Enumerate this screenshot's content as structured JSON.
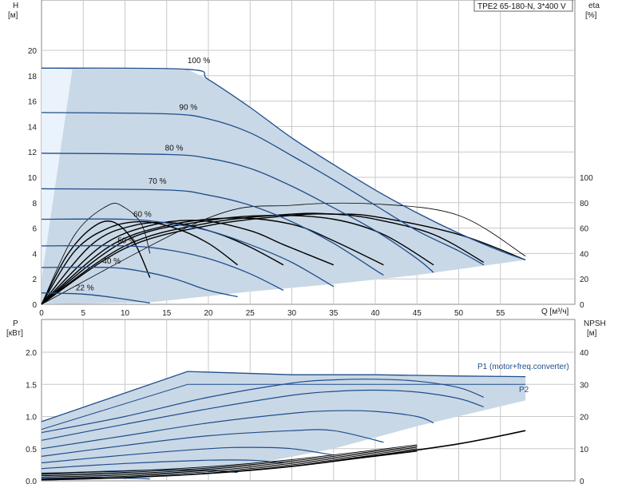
{
  "chart_data": [
    {
      "type": "line",
      "panel": "top",
      "title": "TPE2 65-180-N, 3*400 V",
      "ylabel_left": "H",
      "ylabel_left_unit": "[м]",
      "ylabel_right": "eta",
      "ylabel_right_unit": "[%]",
      "xlabel": "Q [м³/ч]",
      "xlim": [
        0,
        60
      ],
      "ylim": [
        0,
        23
      ],
      "xticks": [
        "0",
        "5",
        "10",
        "15",
        "20",
        "25",
        "30",
        "35",
        "40",
        "45",
        "50",
        "55"
      ],
      "yticks_left": [
        "0",
        "2",
        "4",
        "6",
        "8",
        "10",
        "12",
        "14",
        "16",
        "18",
        "20"
      ],
      "yticks_right": [
        "0",
        "20",
        "40",
        "60",
        "80",
        "100"
      ],
      "right_axis_range": [
        0,
        100
      ],
      "grid": true,
      "operating_area_color": "#c9d8e6",
      "curve_color": "#1f4e8c",
      "head_curves": [
        {
          "name": "100 %",
          "x": [
            0,
            17.5,
            20,
            25,
            30,
            35,
            40,
            45,
            50,
            55,
            58
          ],
          "y": [
            18.6,
            18.5,
            17.7,
            15.5,
            13.1,
            11.0,
            9.0,
            7.2,
            5.6,
            4.2,
            3.5
          ]
        },
        {
          "name": "90 %",
          "x": [
            0,
            15,
            20,
            25,
            30,
            35,
            40,
            45,
            50,
            53
          ],
          "y": [
            15.1,
            15.0,
            14.6,
            13.5,
            11.7,
            9.8,
            7.8,
            5.8,
            4.2,
            3.1
          ]
        },
        {
          "name": "80 %",
          "x": [
            0,
            15,
            20,
            25,
            30,
            35,
            40,
            45,
            47
          ],
          "y": [
            11.9,
            11.8,
            11.5,
            10.7,
            9.3,
            7.6,
            5.8,
            3.6,
            2.5
          ]
        },
        {
          "name": "70 %",
          "x": [
            0,
            15,
            20,
            25,
            30,
            35,
            40,
            41
          ],
          "y": [
            9.1,
            9.0,
            8.6,
            7.8,
            6.5,
            4.8,
            2.7,
            2.3
          ]
        },
        {
          "name": "60 %",
          "x": [
            0,
            10,
            15,
            20,
            25,
            30,
            35
          ],
          "y": [
            6.7,
            6.7,
            6.4,
            5.8,
            4.7,
            3.3,
            1.4
          ]
        },
        {
          "name": "50 %",
          "x": [
            0,
            10,
            15,
            20,
            25,
            29
          ],
          "y": [
            4.6,
            4.6,
            4.3,
            3.6,
            2.4,
            1.1
          ]
        },
        {
          "name": "40 %",
          "x": [
            0,
            8,
            12,
            16,
            20,
            23.5
          ],
          "y": [
            2.9,
            2.9,
            2.6,
            2.0,
            1.1,
            0.6
          ]
        },
        {
          "name": "22 %",
          "x": [
            0,
            5,
            9,
            13
          ],
          "y": [
            0.9,
            0.8,
            0.5,
            0.1
          ]
        }
      ],
      "efficiency_curves_pct": [
        {
          "name": "100 %",
          "x": [
            0,
            10,
            20,
            30,
            35,
            40,
            50,
            58
          ],
          "y": [
            0,
            44,
            62,
            70,
            71,
            69,
            55,
            35
          ]
        },
        {
          "name": "90 %",
          "x": [
            0,
            10,
            20,
            30,
            35,
            40,
            47,
            53
          ],
          "y": [
            0,
            46,
            64,
            71,
            71,
            67,
            55,
            33
          ]
        },
        {
          "name": "80 %",
          "x": [
            0,
            10,
            20,
            28,
            35,
            41,
            47
          ],
          "y": [
            0,
            50,
            66,
            70,
            67,
            55,
            31
          ]
        },
        {
          "name": "70 %",
          "x": [
            0,
            8,
            15,
            23,
            30,
            35,
            41
          ],
          "y": [
            0,
            45,
            62,
            68,
            63,
            50,
            31
          ]
        },
        {
          "name": "60 %",
          "x": [
            0,
            7,
            13,
            19,
            25,
            29,
            35
          ],
          "y": [
            0,
            45,
            62,
            66,
            58,
            47,
            31
          ]
        },
        {
          "name": "50 %",
          "x": [
            0,
            6,
            11,
            16,
            21,
            25,
            29
          ],
          "y": [
            0,
            47,
            62,
            64,
            56,
            45,
            31
          ]
        },
        {
          "name": "40 %",
          "x": [
            0,
            4,
            8,
            12,
            16,
            20,
            23.5
          ],
          "y": [
            0,
            42,
            60,
            65,
            60,
            48,
            31
          ]
        },
        {
          "name": "22 %",
          "x": [
            0,
            3,
            6,
            8.5,
            11,
            13
          ],
          "y": [
            0,
            38,
            60,
            65,
            50,
            21
          ]
        }
      ],
      "efficiency_reference_curves_pct": [
        {
          "x": [
            0,
            4,
            8,
            10,
            12,
            13
          ],
          "y": [
            0,
            55,
            78,
            76,
            63,
            40
          ]
        },
        {
          "x": [
            0,
            20,
            30,
            40,
            50,
            58
          ],
          "y": [
            0,
            68,
            78,
            79,
            70,
            38
          ]
        }
      ],
      "annotations": [
        "100 %",
        "90 %",
        "80 %",
        "70 %",
        "60 %",
        "50 %",
        "40 %",
        "22 %"
      ]
    },
    {
      "type": "line",
      "panel": "bottom",
      "ylabel_left": "P",
      "ylabel_left_unit": "[кВт]",
      "ylabel_right": "NPSH",
      "ylabel_right_unit": "[м]",
      "xlim": [
        0,
        60
      ],
      "ylim": [
        0,
        2.0
      ],
      "yticks_left": [
        "0.0",
        "0.5",
        "1.0",
        "1.5",
        "2.0"
      ],
      "yticks_right": [
        "0",
        "10",
        "20",
        "30",
        "40"
      ],
      "right_axis_range": [
        0,
        40
      ],
      "grid": true,
      "power_area_color": "#c9d8e6",
      "curve_color": "#1f4e8c",
      "legend_labels": [
        "P1 (motor+freq.converter)",
        "P2"
      ],
      "p1_100": {
        "x": [
          0,
          17.5,
          30,
          40,
          50,
          58
        ],
        "y": [
          0.92,
          1.7,
          1.65,
          1.65,
          1.63,
          1.62
        ]
      },
      "p2_100": {
        "x": [
          0,
          17.5,
          30,
          40,
          50,
          58
        ],
        "y": [
          0.8,
          1.5,
          1.5,
          1.5,
          1.5,
          1.5
        ]
      },
      "power_curves": [
        {
          "name": "100 %",
          "x": [
            0,
            10,
            20,
            30,
            35,
            40,
            45,
            50,
            53
          ],
          "y": [
            0.75,
            1.0,
            1.3,
            1.52,
            1.57,
            1.58,
            1.55,
            1.45,
            1.3
          ]
        },
        {
          "name": "90 %",
          "x": [
            0,
            10,
            20,
            30,
            35,
            40,
            45,
            50,
            53
          ],
          "y": [
            0.63,
            0.88,
            1.12,
            1.33,
            1.39,
            1.41,
            1.38,
            1.28,
            1.15
          ]
        },
        {
          "name": "80 %",
          "x": [
            0,
            10,
            20,
            30,
            35,
            40,
            45,
            47
          ],
          "y": [
            0.5,
            0.7,
            0.9,
            1.05,
            1.09,
            1.08,
            1.0,
            0.9
          ]
        },
        {
          "name": "70 %",
          "x": [
            0,
            10,
            20,
            30,
            35,
            41
          ],
          "y": [
            0.38,
            0.55,
            0.7,
            0.78,
            0.78,
            0.6
          ]
        },
        {
          "name": "60 %",
          "x": [
            0,
            10,
            20,
            25,
            30,
            35
          ],
          "y": [
            0.28,
            0.4,
            0.5,
            0.52,
            0.5,
            0.4
          ]
        },
        {
          "name": "50 %",
          "x": [
            0,
            10,
            20,
            25,
            29
          ],
          "y": [
            0.19,
            0.27,
            0.32,
            0.32,
            0.28
          ]
        },
        {
          "name": "40 %",
          "x": [
            0,
            8,
            15,
            20,
            23.5
          ],
          "y": [
            0.11,
            0.15,
            0.17,
            0.16,
            0.13
          ]
        },
        {
          "name": "22 %",
          "x": [
            0,
            5,
            10,
            13
          ],
          "y": [
            0.03,
            0.04,
            0.04,
            0.03
          ]
        }
      ],
      "npsh_curve": {
        "x": [
          0,
          10,
          20,
          30,
          40,
          50,
          58
        ],
        "y": [
          0.3,
          1.0,
          2.3,
          4.5,
          7.8,
          11.5,
          15.6
        ]
      }
    }
  ]
}
